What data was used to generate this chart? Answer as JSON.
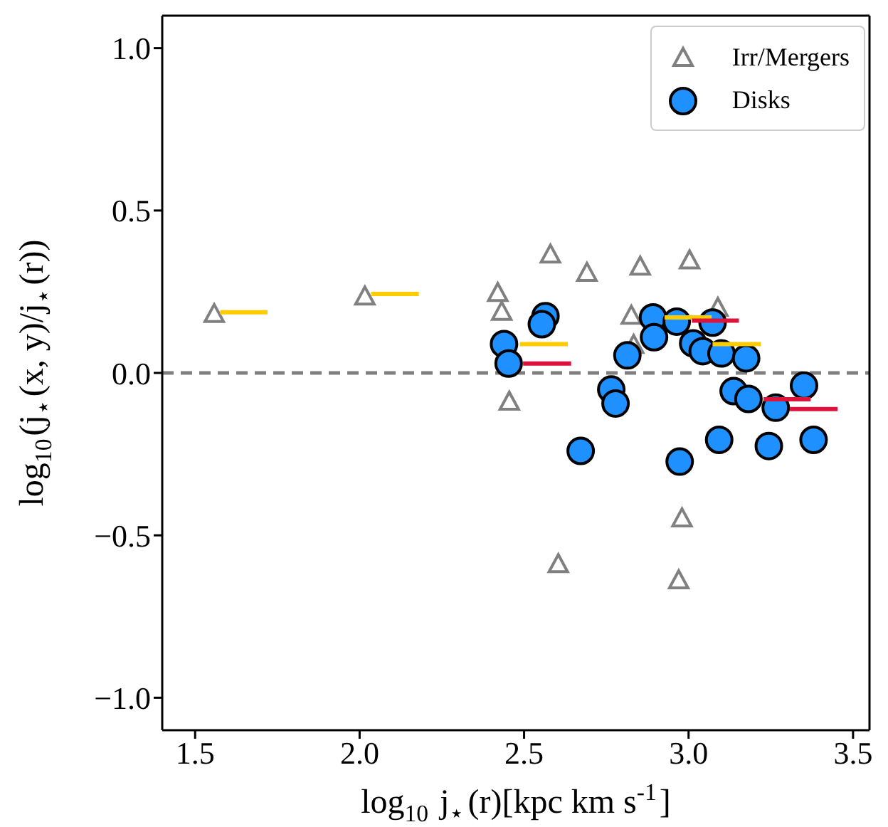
{
  "chart_data": {
    "type": "scatter",
    "xlabel": "log$_{10}$ j$_{⋆}$(r)[kpc km s$^{-1}$]",
    "ylabel": "log$_{10}$(j$_{⋆}$(x, y)/j$_{⋆}$(r))",
    "xlim": [
      1.4,
      3.55
    ],
    "xticks": [
      1.5,
      {
        "value": 2.0,
        "label": "2.0"
      },
      2.5,
      {
        "value": 3.0,
        "label": "3.0"
      },
      3.5
    ],
    "ylim": [
      -1.1,
      1.1
    ],
    "yticks": [
      {
        "value": -1.0,
        "label": "−1.0"
      },
      {
        "value": -0.5,
        "label": "−0.5"
      },
      {
        "value": 0.0,
        "label": "0.0"
      },
      0.5,
      {
        "value": 1.0,
        "label": "1.0"
      }
    ],
    "grid": false,
    "legend": "top right",
    "ref_lines": [
      {
        "axis": "y",
        "value": 0,
        "color": "#808080",
        "line_style": "dashed"
      }
    ],
    "series": [
      {
        "name": "Irr/Mergers",
        "marker": "triangle",
        "color": "#808080",
        "x": [
          1.558,
          2.016,
          2.42,
          2.432,
          2.455,
          2.58,
          2.691,
          2.853,
          3.003,
          2.826,
          3.089,
          2.833,
          2.98,
          2.604,
          2.97
        ],
        "values": [
          0.18,
          0.234,
          0.245,
          0.187,
          -0.09,
          0.363,
          0.307,
          0.326,
          0.345,
          0.175,
          0.199,
          0.085,
          -0.449,
          -0.59,
          -0.64
        ]
      },
      {
        "name": "Disks",
        "marker": "circle",
        "color": "#1e90ff",
        "x": [
          2.439,
          2.453,
          2.565,
          2.554,
          2.814,
          2.765,
          2.778,
          2.672,
          2.892,
          2.895,
          2.964,
          2.973,
          3.014,
          3.043,
          3.073,
          3.1,
          3.175,
          3.093,
          3.137,
          3.182,
          3.265,
          3.244,
          3.351,
          3.38
        ],
        "values": [
          0.089,
          0.029,
          0.175,
          0.15,
          0.054,
          -0.051,
          -0.094,
          -0.24,
          0.171,
          0.11,
          0.158,
          -0.273,
          0.091,
          0.067,
          0.155,
          0.06,
          0.045,
          -0.206,
          -0.056,
          -0.08,
          -0.107,
          -0.225,
          -0.039,
          -0.206
        ]
      },
      {
        "type": "line",
        "marker": "none",
        "color": "#ffcc00",
        "x": [
          1.576,
          1.72
        ],
        "values": [
          0.187,
          0.187
        ]
      },
      {
        "type": "line",
        "marker": "none",
        "color": "#ffcc00",
        "x": [
          2.036,
          2.18
        ],
        "values": [
          0.243,
          0.243
        ]
      },
      {
        "type": "line",
        "marker": "none",
        "color": "#ffcc00",
        "x": [
          2.487,
          2.633
        ],
        "values": [
          0.089,
          0.089
        ]
      },
      {
        "type": "line",
        "marker": "none",
        "color": "#dc143c",
        "x": [
          2.497,
          2.643
        ],
        "values": [
          0.029,
          0.029
        ]
      },
      {
        "type": "line",
        "marker": "none",
        "color": "#ffcc00",
        "x": [
          2.927,
          3.07
        ],
        "values": [
          0.171,
          0.171
        ]
      },
      {
        "type": "line",
        "marker": "none",
        "color": "#dc143c",
        "x": [
          3.01,
          3.153
        ],
        "values": [
          0.161,
          0.161
        ]
      },
      {
        "type": "line",
        "marker": "none",
        "color": "#ffcc00",
        "x": [
          3.073,
          3.22
        ],
        "values": [
          0.089,
          0.089
        ]
      },
      {
        "type": "line",
        "marker": "none",
        "color": "#dc143c",
        "x": [
          3.228,
          3.371
        ],
        "values": [
          -0.081,
          -0.081
        ]
      },
      {
        "type": "line",
        "marker": "none",
        "color": "#dc143c",
        "x": [
          3.308,
          3.453
        ],
        "values": [
          -0.111,
          -0.111
        ]
      }
    ]
  }
}
